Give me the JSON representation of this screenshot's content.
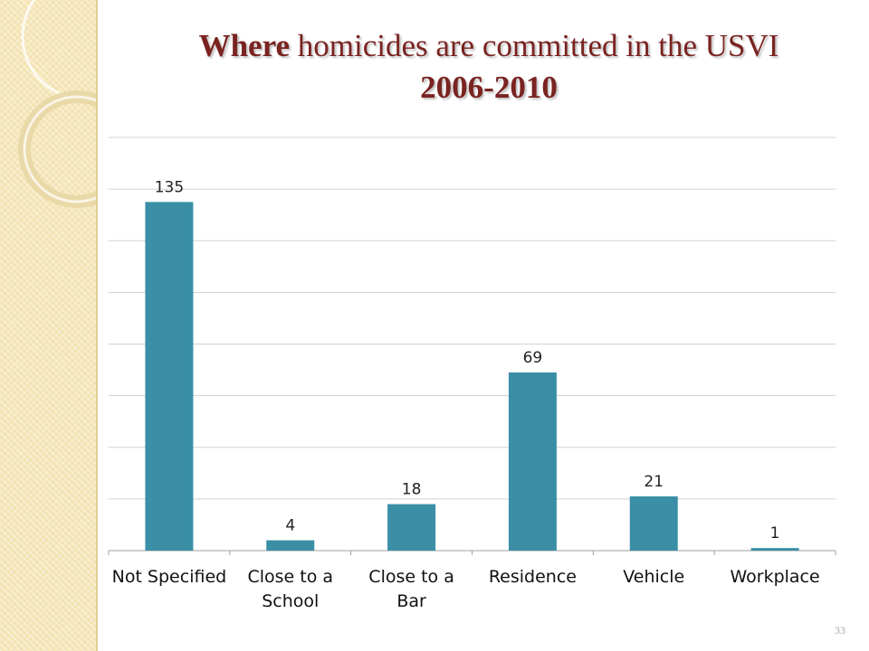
{
  "slide": {
    "title_bold": "Where",
    "title_rest": " homicides are committed in the USVI",
    "title_line2": "2006-2010",
    "page_number": "33"
  },
  "colors": {
    "bar": "#3a8fa6",
    "title": "#7a2320",
    "grid": "#d0d0d0"
  },
  "chart_data": {
    "type": "bar",
    "title": "Where homicides are committed in the USVI 2006-2010",
    "categories": [
      [
        "Not Specified"
      ],
      [
        "Close to a",
        "School"
      ],
      [
        "Close to a",
        "Bar"
      ],
      [
        "Residence"
      ],
      [
        "Vehicle"
      ],
      [
        "Workplace"
      ]
    ],
    "values": [
      135,
      4,
      18,
      69,
      21,
      1
    ],
    "data_labels": [
      "135",
      "4",
      "18",
      "69",
      "21",
      "1"
    ],
    "ylim": [
      0,
      160
    ],
    "grid": true,
    "grid_step": 20
  }
}
